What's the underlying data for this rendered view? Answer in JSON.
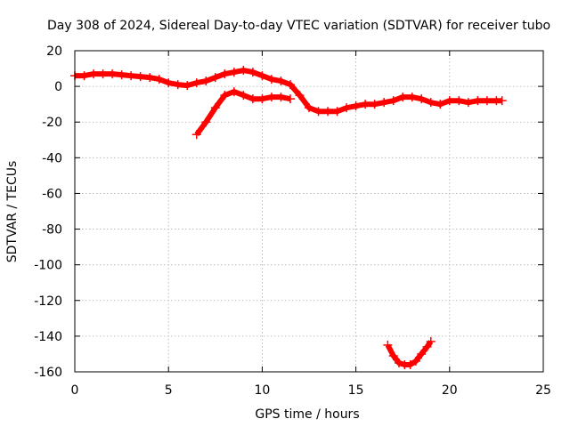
{
  "chart_data": {
    "type": "scatter",
    "title": "Day 308 of 2024, Sidereal Day-to-day VTEC variation (SDTVAR) for receiver tubo",
    "xlabel": "GPS time / hours",
    "ylabel": "SDTVAR / TECUs",
    "xlim": [
      0,
      25
    ],
    "ylim": [
      -160,
      20
    ],
    "xticks": [
      0,
      5,
      10,
      15,
      20,
      25
    ],
    "yticks": [
      20,
      0,
      -20,
      -40,
      -60,
      -80,
      -100,
      -120,
      -140,
      -160
    ],
    "grid": true,
    "marker": "plus",
    "color": "#ff0000",
    "series": [
      {
        "name": "main",
        "x": [
          0,
          0.5,
          1,
          1.5,
          2,
          2.5,
          3,
          3.5,
          4,
          4.5,
          5,
          5.5,
          6,
          6.5,
          7,
          7.5,
          8,
          8.5,
          9,
          9.5,
          10,
          10.5,
          11,
          11.5,
          12,
          12.5,
          13,
          13.5,
          14,
          14.5,
          15,
          15.5,
          16,
          16.5,
          17,
          17.5,
          18,
          18.5,
          19,
          19.5,
          20,
          20.5,
          21,
          21.5,
          22,
          22.5,
          22.8
        ],
        "y": [
          6,
          6,
          7,
          7,
          7,
          6.5,
          6,
          5.5,
          5,
          4,
          2,
          1,
          0.5,
          2,
          3,
          5,
          7,
          8,
          9,
          8,
          6,
          4,
          3,
          1,
          -5,
          -12,
          -14,
          -14,
          -14,
          -12,
          -11,
          -10,
          -10,
          -9,
          -8,
          -6,
          -6,
          -7,
          -9,
          -10,
          -8,
          -8,
          -9,
          -8,
          -8,
          -8,
          -8
        ]
      },
      {
        "name": "secondary",
        "x": [
          6.5,
          7,
          7.5,
          8,
          8.5,
          9,
          9.5,
          10,
          10.5,
          11,
          11.5
        ],
        "y": [
          -27,
          -20,
          -12,
          -5,
          -3,
          -5,
          -7,
          -7,
          -6,
          -6,
          -7
        ]
      },
      {
        "name": "lower-arc",
        "x": [
          16.7,
          17,
          17.3,
          17.6,
          17.9,
          18.2,
          18.5,
          18.8,
          19
        ],
        "y": [
          -145,
          -151,
          -155,
          -156,
          -156,
          -154,
          -150,
          -146,
          -143
        ]
      }
    ]
  }
}
